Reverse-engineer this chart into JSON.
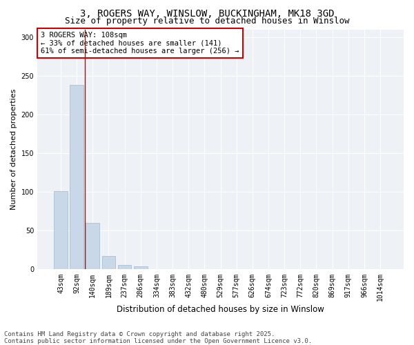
{
  "title1": "3, ROGERS WAY, WINSLOW, BUCKINGHAM, MK18 3GD",
  "title2": "Size of property relative to detached houses in Winslow",
  "xlabel": "Distribution of detached houses by size in Winslow",
  "ylabel": "Number of detached properties",
  "categories": [
    "43sqm",
    "92sqm",
    "140sqm",
    "189sqm",
    "237sqm",
    "286sqm",
    "334sqm",
    "383sqm",
    "432sqm",
    "480sqm",
    "529sqm",
    "577sqm",
    "626sqm",
    "674sqm",
    "723sqm",
    "772sqm",
    "820sqm",
    "869sqm",
    "917sqm",
    "966sqm",
    "1014sqm"
  ],
  "values": [
    101,
    238,
    60,
    17,
    6,
    4,
    0,
    0,
    0,
    0,
    0,
    0,
    0,
    0,
    0,
    0,
    0,
    0,
    0,
    0,
    0
  ],
  "bar_color": "#c8d8e8",
  "bar_edgecolor": "#a0b8d0",
  "vline_x": 1.5,
  "vline_color": "#cc0000",
  "annotation_text": "3 ROGERS WAY: 108sqm\n← 33% of detached houses are smaller (141)\n61% of semi-detached houses are larger (256) →",
  "annotation_box_color": "#ffffff",
  "annotation_box_edgecolor": "#cc0000",
  "ylim": [
    0,
    310
  ],
  "yticks": [
    0,
    50,
    100,
    150,
    200,
    250,
    300
  ],
  "footer1": "Contains HM Land Registry data © Crown copyright and database right 2025.",
  "footer2": "Contains public sector information licensed under the Open Government Licence v3.0.",
  "bg_color": "#ffffff",
  "plot_bg_color": "#eef2f7",
  "title1_fontsize": 10,
  "title2_fontsize": 9,
  "xlabel_fontsize": 8.5,
  "ylabel_fontsize": 8,
  "tick_fontsize": 7,
  "annotation_fontsize": 7.5,
  "footer_fontsize": 6.5
}
